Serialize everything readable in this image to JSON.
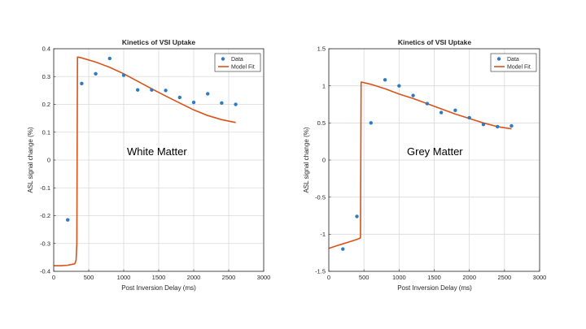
{
  "colors": {
    "data": "#2e7bc4",
    "fit": "#d95319",
    "axis": "#262626",
    "grid": "#d9d9d9"
  },
  "chart_data": [
    {
      "type": "scatter",
      "title": "Kinetics of VSI Uptake",
      "xlabel": "Post Inversion Delay (ms)",
      "ylabel": "ASL signal change (%)",
      "annotation": "White Matter",
      "xlim": [
        0,
        3000
      ],
      "ylim": [
        -0.4,
        0.4
      ],
      "xticks": [
        0,
        500,
        1000,
        1500,
        2000,
        2500,
        3000
      ],
      "yticks": [
        -0.4,
        -0.3,
        -0.2,
        -0.1,
        0,
        0.1,
        0.2,
        0.3,
        0.4
      ],
      "grid": true,
      "legend": {
        "position": "top-right",
        "entries": [
          "Data",
          "Model Fit"
        ]
      },
      "series": [
        {
          "name": "Data",
          "type": "scatter",
          "x": [
            200,
            400,
            600,
            800,
            1000,
            1200,
            1400,
            1600,
            1800,
            2000,
            2200,
            2400,
            2600
          ],
          "y": [
            -0.215,
            0.275,
            0.31,
            0.365,
            0.305,
            0.252,
            0.252,
            0.25,
            0.225,
            0.207,
            0.238,
            0.205,
            0.2
          ]
        },
        {
          "name": "Model Fit",
          "type": "line",
          "x": [
            0,
            100,
            200,
            300,
            320,
            330,
            340,
            350,
            400,
            600,
            800,
            1000,
            1200,
            1400,
            1600,
            1800,
            2000,
            2200,
            2400,
            2600
          ],
          "y": [
            -0.38,
            -0.38,
            -0.378,
            -0.373,
            -0.36,
            -0.3,
            0.37,
            0.37,
            0.367,
            0.352,
            0.333,
            0.31,
            0.283,
            0.256,
            0.23,
            0.205,
            0.18,
            0.16,
            0.145,
            0.135
          ]
        }
      ]
    },
    {
      "type": "scatter",
      "title": "Kinetics of VSI Uptake",
      "xlabel": "Post Inversion Delay (ms)",
      "ylabel": "ASL signal change (%)",
      "annotation": "Grey Matter",
      "xlim": [
        0,
        3000
      ],
      "ylim": [
        -1.5,
        1.5
      ],
      "xticks": [
        0,
        500,
        1000,
        1500,
        2000,
        2500,
        3000
      ],
      "yticks": [
        -1.5,
        -1,
        -0.5,
        0,
        0.5,
        1,
        1.5
      ],
      "grid": true,
      "legend": {
        "position": "top-right",
        "entries": [
          "Data",
          "Model Fit"
        ]
      },
      "series": [
        {
          "name": "Data",
          "type": "scatter",
          "x": [
            200,
            400,
            600,
            800,
            1000,
            1200,
            1400,
            1600,
            1800,
            2000,
            2200,
            2400,
            2600
          ],
          "y": [
            -1.2,
            -0.76,
            0.5,
            1.08,
            1.0,
            0.87,
            0.76,
            0.64,
            0.67,
            0.57,
            0.48,
            0.45,
            0.46
          ]
        },
        {
          "name": "Model Fit",
          "type": "line",
          "x": [
            0,
            100,
            200,
            300,
            400,
            450,
            460,
            470,
            600,
            800,
            1000,
            1200,
            1400,
            1600,
            1800,
            2000,
            2200,
            2400,
            2600
          ],
          "y": [
            -1.19,
            -1.16,
            -1.13,
            -1.1,
            -1.07,
            -1.05,
            1.05,
            1.05,
            1.02,
            0.96,
            0.89,
            0.83,
            0.76,
            0.69,
            0.62,
            0.56,
            0.5,
            0.45,
            0.42
          ]
        }
      ]
    }
  ]
}
